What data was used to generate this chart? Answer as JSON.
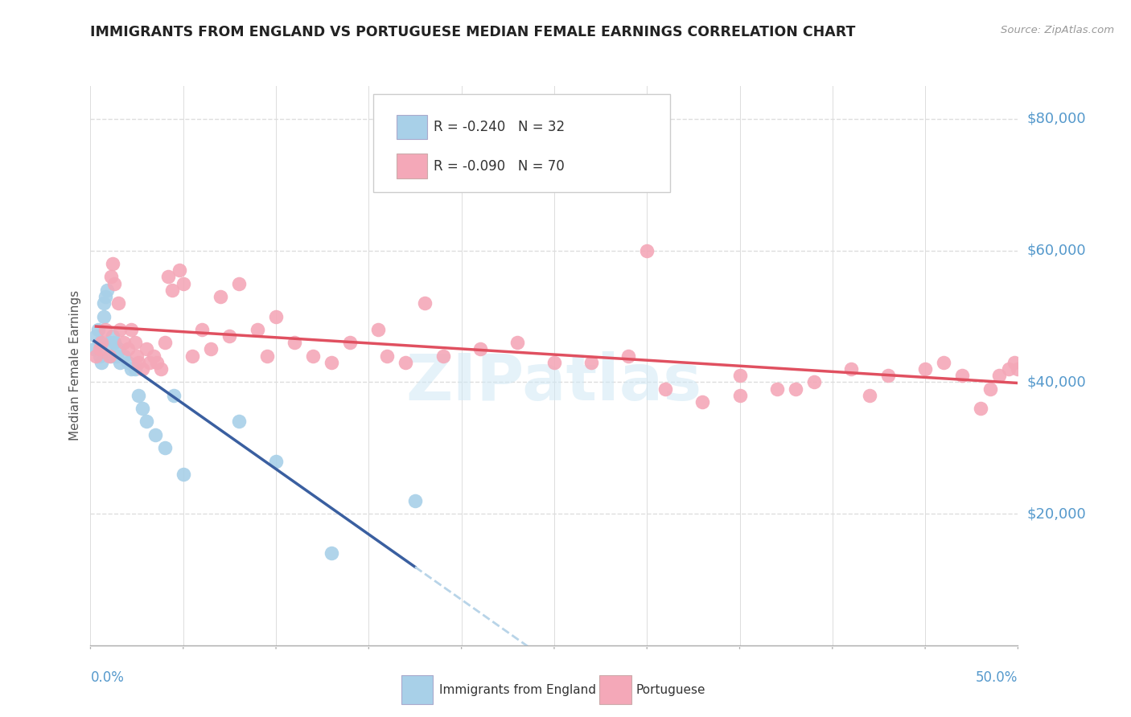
{
  "title": "IMMIGRANTS FROM ENGLAND VS PORTUGUESE MEDIAN FEMALE EARNINGS CORRELATION CHART",
  "source": "Source: ZipAtlas.com",
  "ylabel": "Median Female Earnings",
  "R_england": -0.24,
  "N_england": 32,
  "R_portuguese": -0.09,
  "N_portuguese": 70,
  "color_england": "#A8D0E8",
  "color_portuguese": "#F4A8B8",
  "color_england_line": "#3A5FA0",
  "color_portuguese_line": "#E05060",
  "color_dashed_line": "#B8D4E8",
  "xmin": 0.0,
  "xmax": 0.5,
  "ymin": 0,
  "ymax": 85000,
  "tick_color": "#5599CC",
  "grid_color": "#DDDDDD",
  "england_x": [
    0.002,
    0.003,
    0.004,
    0.005,
    0.005,
    0.006,
    0.007,
    0.007,
    0.008,
    0.009,
    0.01,
    0.011,
    0.012,
    0.013,
    0.014,
    0.015,
    0.016,
    0.018,
    0.02,
    0.022,
    0.024,
    0.026,
    0.028,
    0.03,
    0.035,
    0.04,
    0.045,
    0.05,
    0.08,
    0.1,
    0.13,
    0.175
  ],
  "england_y": [
    45000,
    47000,
    48000,
    46000,
    44000,
    43000,
    50000,
    52000,
    53000,
    54000,
    46000,
    44000,
    47000,
    46000,
    44000,
    45000,
    43000,
    44000,
    43000,
    42000,
    42000,
    38000,
    36000,
    34000,
    32000,
    30000,
    38000,
    26000,
    34000,
    28000,
    14000,
    22000
  ],
  "portuguese_x": [
    0.003,
    0.005,
    0.006,
    0.008,
    0.01,
    0.011,
    0.012,
    0.013,
    0.015,
    0.016,
    0.018,
    0.02,
    0.022,
    0.024,
    0.025,
    0.026,
    0.028,
    0.03,
    0.032,
    0.034,
    0.036,
    0.038,
    0.04,
    0.042,
    0.044,
    0.048,
    0.05,
    0.055,
    0.06,
    0.065,
    0.07,
    0.075,
    0.08,
    0.09,
    0.095,
    0.1,
    0.11,
    0.12,
    0.13,
    0.14,
    0.155,
    0.16,
    0.17,
    0.18,
    0.19,
    0.21,
    0.23,
    0.25,
    0.27,
    0.29,
    0.31,
    0.33,
    0.35,
    0.37,
    0.39,
    0.41,
    0.43,
    0.45,
    0.46,
    0.47,
    0.48,
    0.485,
    0.49,
    0.495,
    0.498,
    0.5,
    0.3,
    0.38,
    0.35,
    0.42
  ],
  "portuguese_y": [
    44000,
    45000,
    46000,
    48000,
    44000,
    56000,
    58000,
    55000,
    52000,
    48000,
    46000,
    45000,
    48000,
    46000,
    44000,
    43000,
    42000,
    45000,
    43000,
    44000,
    43000,
    42000,
    46000,
    56000,
    54000,
    57000,
    55000,
    44000,
    48000,
    45000,
    53000,
    47000,
    55000,
    48000,
    44000,
    50000,
    46000,
    44000,
    43000,
    46000,
    48000,
    44000,
    43000,
    52000,
    44000,
    45000,
    46000,
    43000,
    43000,
    44000,
    39000,
    37000,
    41000,
    39000,
    40000,
    42000,
    41000,
    42000,
    43000,
    41000,
    36000,
    39000,
    41000,
    42000,
    43000,
    42000,
    60000,
    39000,
    38000,
    38000
  ]
}
